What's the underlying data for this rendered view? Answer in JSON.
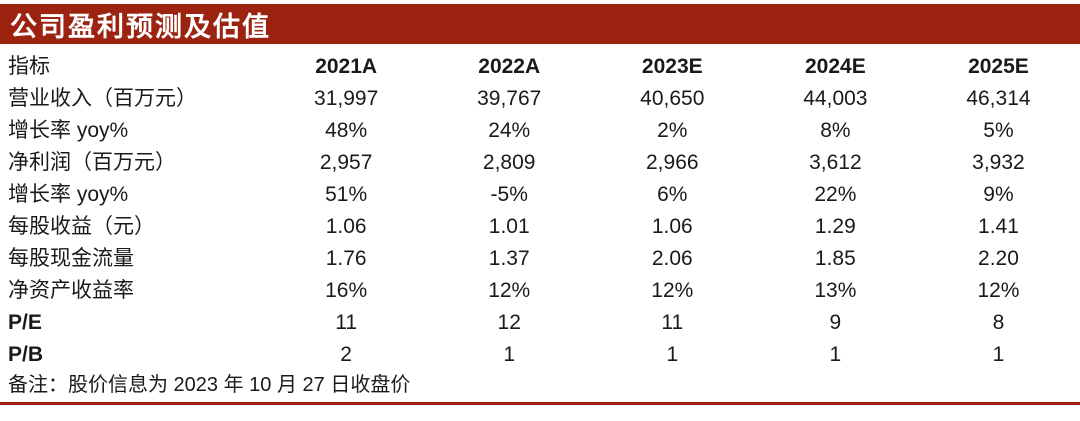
{
  "colors": {
    "accent": "#9B2310",
    "text": "#1A1A1A",
    "title_text": "#FFFFFF"
  },
  "title": "公司盈利预测及估值",
  "table": {
    "header": {
      "label": "指标",
      "years": [
        "2021A",
        "2022A",
        "2023E",
        "2024E",
        "2025E"
      ]
    },
    "rows": [
      {
        "label": "营业收入（百万元）",
        "values": [
          "31,997",
          "39,767",
          "40,650",
          "44,003",
          "46,314"
        ]
      },
      {
        "label": "增长率 yoy%",
        "values": [
          "48%",
          "24%",
          "2%",
          "8%",
          "5%"
        ]
      },
      {
        "label": "净利润（百万元）",
        "values": [
          "2,957",
          "2,809",
          "2,966",
          "3,612",
          "3,932"
        ]
      },
      {
        "label": "增长率 yoy%",
        "values": [
          "51%",
          "-5%",
          "6%",
          "22%",
          "9%"
        ]
      },
      {
        "label": "每股收益（元）",
        "values": [
          "1.06",
          "1.01",
          "1.06",
          "1.29",
          "1.41"
        ]
      },
      {
        "label": "每股现金流量",
        "values": [
          "1.76",
          "1.37",
          "2.06",
          "1.85",
          "2.20"
        ]
      },
      {
        "label": "净资产收益率",
        "values": [
          "16%",
          "12%",
          "12%",
          "13%",
          "12%"
        ]
      },
      {
        "label": "P/E",
        "values": [
          "11",
          "12",
          "11",
          "9",
          "8"
        ]
      },
      {
        "label": "P/B",
        "values": [
          "2",
          "1",
          "1",
          "1",
          "1"
        ]
      }
    ]
  },
  "note": "备注：股价信息为 2023 年 10 月 27 日收盘价"
}
